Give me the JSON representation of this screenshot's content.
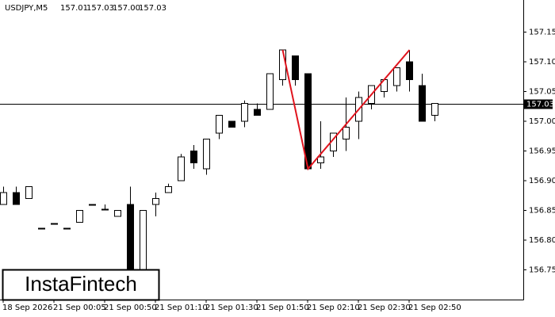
{
  "chart_data": {
    "type": "candlestick",
    "header": {
      "symbol": "USDJPY,M5",
      "ohlc": [
        "157.01",
        "157.03",
        "157.00",
        "157.03"
      ]
    },
    "categories": [
      "18 Sep 2026",
      null,
      null,
      null,
      "21 Sep 00:05",
      null,
      null,
      null,
      "21 Sep 00:50",
      null,
      null,
      null,
      "21 Sep 01:10",
      null,
      null,
      null,
      "21 Sep 01:30",
      null,
      null,
      null,
      "21 Sep 01:50",
      null,
      null,
      null,
      "21 Sep 02:10",
      null,
      null,
      null,
      "21 Sep 02:30",
      null,
      null,
      null,
      "21 Sep 02:50",
      null,
      null
    ],
    "open": [
      156.86,
      156.88,
      156.87,
      156.82,
      156.828,
      156.82,
      156.83,
      156.86,
      156.852,
      156.84,
      156.86,
      156.71,
      156.86,
      156.88,
      156.9,
      156.95,
      156.92,
      156.98,
      157.0,
      157.0,
      157.02,
      157.02,
      157.07,
      157.11,
      157.08,
      156.93,
      156.95,
      156.97,
      157.0,
      157.03,
      157.05,
      157.06,
      157.1,
      157.06,
      157.01
    ],
    "high": [
      156.89,
      156.89,
      156.89,
      156.82,
      156.828,
      156.82,
      156.85,
      156.86,
      156.86,
      156.85,
      156.89,
      156.85,
      156.88,
      156.895,
      156.945,
      156.96,
      156.97,
      157.01,
      157.0,
      157.035,
      157.03,
      157.08,
      157.12,
      157.11,
      157.08,
      157.0,
      156.98,
      157.04,
      157.05,
      157.06,
      157.07,
      157.09,
      157.12,
      157.08,
      157.03
    ],
    "low": [
      156.86,
      156.86,
      156.87,
      156.82,
      156.828,
      156.82,
      156.83,
      156.86,
      156.852,
      156.84,
      156.69,
      156.69,
      156.84,
      156.88,
      156.9,
      156.92,
      156.91,
      156.97,
      156.99,
      156.99,
      157.01,
      157.02,
      157.06,
      157.06,
      156.92,
      156.92,
      156.94,
      156.95,
      156.97,
      157.02,
      157.04,
      157.05,
      157.05,
      157.0,
      157.0
    ],
    "close": [
      156.88,
      156.86,
      156.89,
      156.82,
      156.828,
      156.82,
      156.85,
      156.86,
      156.852,
      156.85,
      156.71,
      156.85,
      156.87,
      156.89,
      156.94,
      156.93,
      156.97,
      157.01,
      156.99,
      157.03,
      157.01,
      157.08,
      157.12,
      157.07,
      156.92,
      156.94,
      156.98,
      156.99,
      157.04,
      157.06,
      157.07,
      157.09,
      157.07,
      157.0,
      157.03
    ],
    "pattern": {
      "color": "#e0141e",
      "index": [
        22,
        24,
        32
      ],
      "price": [
        157.12,
        156.92,
        157.12
      ]
    },
    "current_price": {
      "value": 157.03,
      "label": "157.03"
    },
    "ylim": [
      156.7,
      157.204
    ],
    "yticks": [
      156.75,
      {
        "value": 156.8,
        "label": "156.80"
      },
      156.85,
      {
        "value": 156.9,
        "label": "156.90"
      },
      156.95,
      {
        "value": 157,
        "label": "157.00"
      },
      157.05,
      {
        "value": 157.1,
        "label": "157.10"
      },
      157.15
    ],
    "logo": "InstaFintech"
  }
}
